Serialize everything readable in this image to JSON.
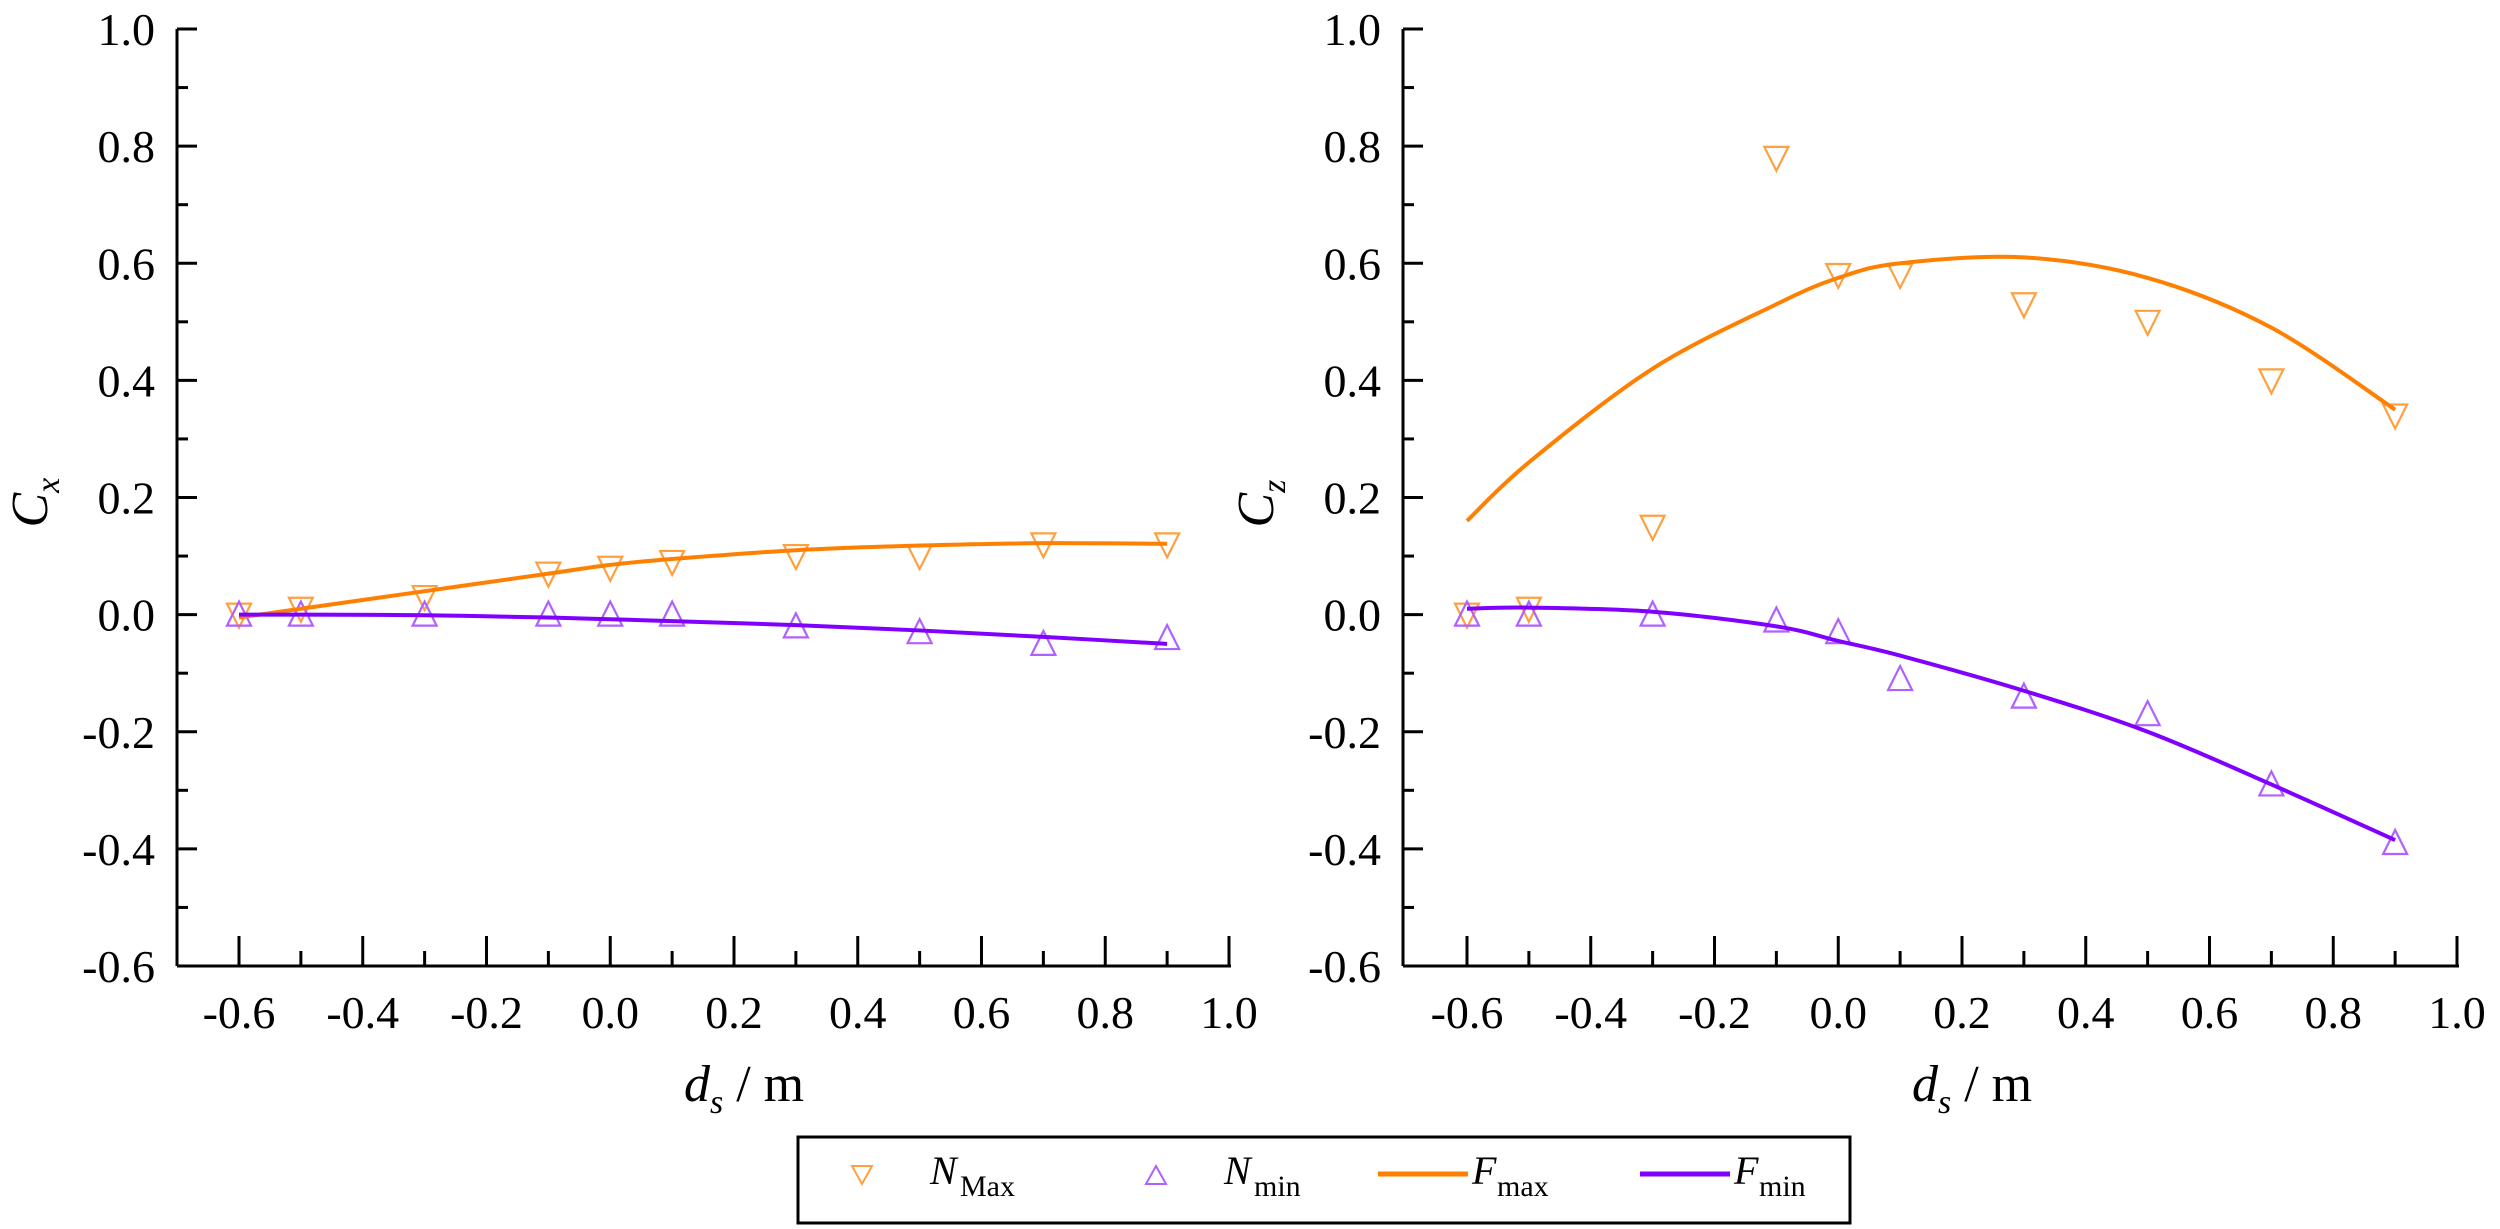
{
  "colors": {
    "max": "#ff8000",
    "min": "#8000ff",
    "marker_max": "#ffa040",
    "marker_min": "#b060ff",
    "axis": "#000000"
  },
  "legend": {
    "items": [
      {
        "symbol": "triangle-down",
        "label_main": "N",
        "label_sub": "Max"
      },
      {
        "symbol": "triangle-up",
        "label_main": "N",
        "label_sub": "min"
      },
      {
        "symbol": "line-orange",
        "label_main": "F",
        "label_sub": "max"
      },
      {
        "symbol": "line-purple",
        "label_main": "F",
        "label_sub": "min"
      }
    ]
  },
  "chart_data": [
    {
      "type": "scatter",
      "title": "",
      "xlabel": "d_s / m",
      "ylabel": "C_x",
      "xlim": [
        -0.7,
        1.0
      ],
      "ylim": [
        -0.6,
        1.0
      ],
      "xticks": [
        "-0.6",
        "-0.4",
        "-0.2",
        "0.0",
        "0.2",
        "0.4",
        "0.6",
        "0.8",
        "1.0"
      ],
      "yticks": [
        "1.0",
        "0.8",
        "0.6",
        "0.4",
        "0.2",
        "0.0",
        "-0.2",
        "-0.4",
        "-0.6"
      ],
      "grid": false,
      "x": [
        -0.6,
        -0.5,
        -0.3,
        -0.1,
        0.0,
        0.1,
        0.3,
        0.5,
        0.7,
        0.9
      ],
      "series": [
        {
          "name": "N_Max",
          "kind": "marker",
          "values": [
            0.0,
            0.01,
            0.03,
            0.07,
            0.08,
            0.09,
            0.1,
            0.1,
            0.12,
            0.12
          ]
        },
        {
          "name": "N_min",
          "kind": "marker",
          "values": [
            0.0,
            0.0,
            0.0,
            0.0,
            0.0,
            0.0,
            -0.02,
            -0.03,
            -0.05,
            -0.04
          ]
        },
        {
          "name": "F_max",
          "kind": "line",
          "values": [
            -0.005,
            0.01,
            0.04,
            0.07,
            0.085,
            0.095,
            0.11,
            0.118,
            0.122,
            0.121
          ]
        },
        {
          "name": "F_min",
          "kind": "line",
          "values": [
            0.0,
            0.0,
            -0.001,
            -0.005,
            -0.008,
            -0.011,
            -0.018,
            -0.027,
            -0.038,
            -0.05
          ]
        }
      ]
    },
    {
      "type": "scatter",
      "title": "",
      "xlabel": "d_s / m",
      "ylabel": "C_z",
      "xlim": [
        -0.7,
        1.0
      ],
      "ylim": [
        -0.6,
        1.0
      ],
      "xticks": [
        "-0.6",
        "-0.4",
        "-0.2",
        "0.0",
        "0.2",
        "0.4",
        "0.6",
        "0.8",
        "1.0"
      ],
      "yticks": [
        "1.0",
        "0.8",
        "0.6",
        "0.4",
        "0.2",
        "0.0",
        "-0.2",
        "-0.4",
        "-0.6"
      ],
      "grid": false,
      "x": [
        -0.6,
        -0.5,
        -0.3,
        -0.1,
        0.0,
        0.1,
        0.3,
        0.5,
        0.7,
        0.9
      ],
      "series": [
        {
          "name": "N_Max",
          "kind": "marker",
          "values": [
            0.0,
            0.01,
            0.15,
            0.78,
            0.58,
            0.58,
            0.53,
            0.5,
            0.4,
            0.34
          ]
        },
        {
          "name": "N_min",
          "kind": "marker",
          "values": [
            0.0,
            0.0,
            0.0,
            -0.01,
            -0.03,
            -0.11,
            -0.14,
            -0.17,
            -0.29,
            -0.39
          ]
        },
        {
          "name": "F_max",
          "kind": "line",
          "values": [
            0.16,
            0.26,
            0.42,
            0.53,
            0.575,
            0.6,
            0.61,
            0.575,
            0.49,
            0.35
          ]
        },
        {
          "name": "F_min",
          "kind": "line",
          "values": [
            0.01,
            0.012,
            0.005,
            -0.02,
            -0.045,
            -0.07,
            -0.13,
            -0.2,
            -0.29,
            -0.385
          ]
        }
      ]
    }
  ]
}
